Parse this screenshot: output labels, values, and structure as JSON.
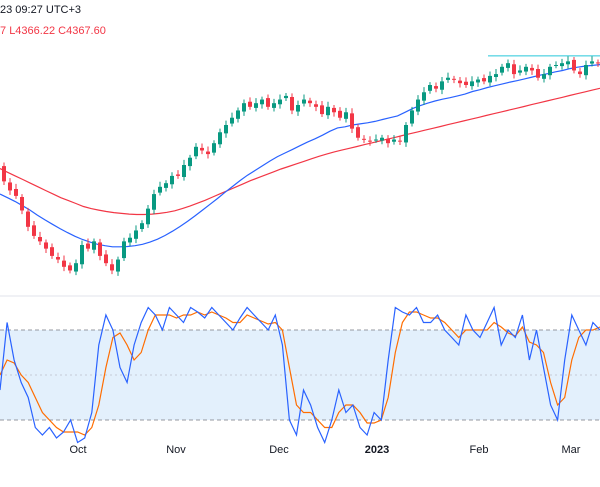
{
  "header": {
    "line1": "23 09:27 UTC+3",
    "low_label": "L4366.22",
    "close_label": "C4367.60"
  },
  "colors": {
    "up": "#089981",
    "down": "#f23645",
    "ma_fast": "#2962ff",
    "ma_slow": "#f23645",
    "stoch_k": "#2962ff",
    "stoch_d": "#ff6d00",
    "stoch_band": "#e3f0fc",
    "horizontal_line": "#26c6da"
  },
  "chart_data": {
    "type": "candlestick",
    "x_labels": [
      "Oct",
      "Nov",
      "Dec",
      "2023",
      "Feb",
      "Mar"
    ],
    "closes": [
      3930,
      3885,
      3860,
      3845,
      3805,
      3760,
      3735,
      3720,
      3700,
      3680,
      3670,
      3650,
      3640,
      3660,
      3710,
      3700,
      3720,
      3680,
      3660,
      3640,
      3670,
      3720,
      3730,
      3750,
      3770,
      3810,
      3850,
      3870,
      3880,
      3900,
      3900,
      3930,
      3950,
      3980,
      3970,
      3960,
      3990,
      4020,
      4040,
      4060,
      4080,
      4100,
      4090,
      4100,
      4110,
      4090,
      4100,
      4110,
      4120,
      4080,
      4095,
      4110,
      4100,
      4090,
      4070,
      4090,
      4075,
      4060,
      4075,
      4030,
      4005,
      4000,
      3995,
      4000,
      4005,
      3990,
      4000,
      3995,
      4040,
      4080,
      4110,
      4130,
      4150,
      4140,
      4160,
      4170,
      4165,
      4155,
      4150,
      4160,
      4165,
      4160,
      4175,
      4180,
      4200,
      4210,
      4180,
      4190,
      4200,
      4190,
      4170,
      4180,
      4200,
      4205,
      4210,
      4215,
      4190,
      4180,
      4205,
      4215,
      4210,
      4205
    ],
    "ma_fast": [
      3850,
      3840,
      3830,
      3818,
      3806,
      3792,
      3779,
      3767,
      3755,
      3744,
      3734,
      3725,
      3718,
      3712,
      3708,
      3705,
      3705,
      3706,
      3708,
      3712,
      3718,
      3726,
      3736,
      3748,
      3761,
      3775,
      3790,
      3806,
      3822,
      3838,
      3855,
      3871,
      3887,
      3902,
      3915,
      3928,
      3941,
      3953,
      3963,
      3973,
      3983,
      3993,
      4002,
      4012,
      4023,
      4032,
      4035,
      4040,
      4043,
      4046,
      4050,
      4055,
      4060,
      4065,
      4075,
      4085,
      4093,
      4100,
      4106,
      4111,
      4115,
      4120,
      4125,
      4132,
      4137,
      4143,
      4148,
      4153,
      4158,
      4162,
      4167,
      4172,
      4177,
      4181,
      4186,
      4190,
      4195,
      4199,
      4202,
      4204,
      4206
    ],
    "ma_slow": [
      3920,
      3910,
      3900,
      3890,
      3880,
      3870,
      3860,
      3850,
      3840,
      3832,
      3824,
      3816,
      3810,
      3806,
      3802,
      3799,
      3797,
      3795,
      3794,
      3794,
      3795,
      3797,
      3800,
      3804,
      3810,
      3817,
      3825,
      3833,
      3842,
      3851,
      3860,
      3869,
      3878,
      3887,
      3895,
      3903,
      3911,
      3919,
      3926,
      3933,
      3940,
      3947,
      3954,
      3960,
      3966,
      3971,
      3976,
      3981,
      3986,
      3991,
      3996,
      4001,
      4006,
      4011,
      4016,
      4021,
      4026,
      4031,
      4036,
      4041,
      4046,
      4051,
      4056,
      4061,
      4066,
      4071,
      4076,
      4081,
      4086,
      4091,
      4096,
      4101,
      4106,
      4111,
      4116,
      4121,
      4126,
      4131,
      4136,
      4141
    ],
    "price_ylim": [
      3600,
      4260
    ],
    "horizontal_level": 4230,
    "stoch_k": [
      40,
      85,
      60,
      45,
      35,
      15,
      10,
      15,
      8,
      12,
      20,
      5,
      8,
      25,
      70,
      90,
      80,
      55,
      45,
      70,
      85,
      95,
      90,
      80,
      95,
      90,
      85,
      95,
      92,
      88,
      95,
      90,
      85,
      80,
      88,
      95,
      90,
      85,
      80,
      90,
      70,
      20,
      10,
      40,
      30,
      15,
      5,
      20,
      40,
      25,
      30,
      15,
      10,
      25,
      20,
      60,
      95,
      92,
      90,
      95,
      85,
      85,
      90,
      80,
      75,
      70,
      90,
      80,
      75,
      85,
      95,
      70,
      80,
      75,
      90,
      60,
      80,
      55,
      30,
      20,
      60,
      90,
      80,
      70,
      85,
      80
    ],
    "stoch_d": [
      50,
      60,
      58,
      50,
      45,
      35,
      25,
      20,
      15,
      12,
      12,
      12,
      10,
      15,
      30,
      55,
      75,
      78,
      70,
      60,
      65,
      80,
      90,
      90,
      90,
      88,
      90,
      90,
      92,
      90,
      92,
      90,
      88,
      85,
      85,
      90,
      88,
      86,
      84,
      85,
      80,
      55,
      30,
      25,
      25,
      20,
      15,
      15,
      25,
      30,
      30,
      25,
      18,
      18,
      20,
      35,
      65,
      85,
      92,
      92,
      90,
      88,
      88,
      85,
      80,
      75,
      80,
      80,
      80,
      80,
      85,
      82,
      78,
      76,
      82,
      72,
      70,
      65,
      45,
      30,
      35,
      60,
      75,
      80,
      80,
      82
    ],
    "stoch_ylim": [
      0,
      100
    ],
    "stoch_bands": [
      20,
      80
    ]
  }
}
